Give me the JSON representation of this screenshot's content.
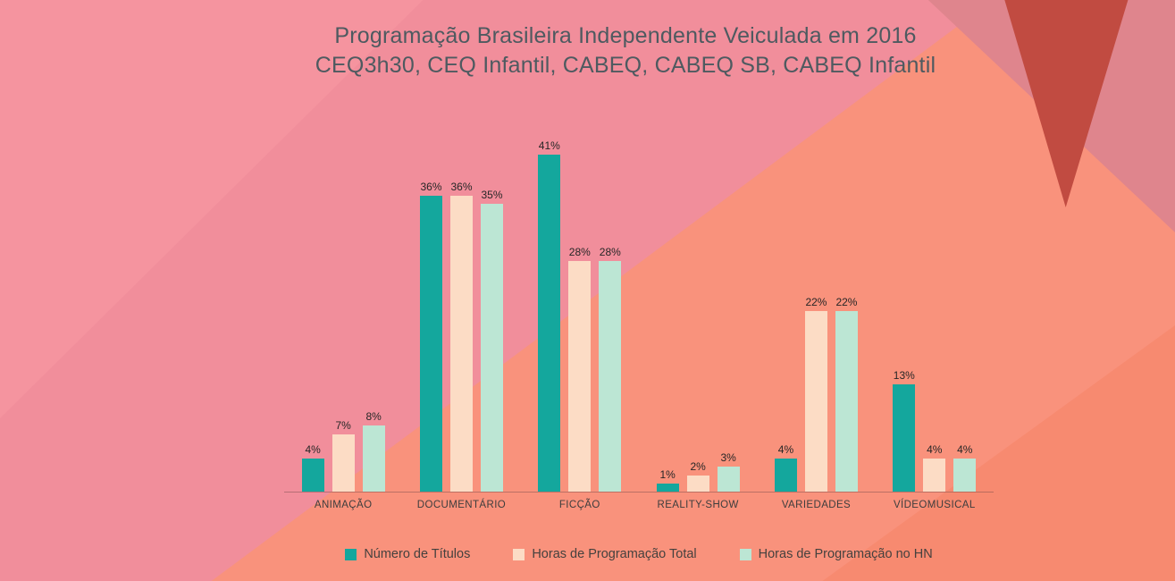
{
  "title": {
    "line1": "Programação Brasileira Independente Veiculada em 2016",
    "line2": "CEQ3h30, CEQ Infantil, CABEQ, CABEQ SB, CABEQ Infantil"
  },
  "chart_data": {
    "type": "bar",
    "title": "Programação Brasileira Independente Veiculada em 2016 — CEQ3h30, CEQ Infantil, CABEQ, CABEQ SB, CABEQ Infantil",
    "categories": [
      "ANIMAÇÃO",
      "DOCUMENTÁRIO",
      "FICÇÃO",
      "REALITY-SHOW",
      "VARIEDADES",
      "VÍDEOMUSICAL"
    ],
    "series": [
      {
        "name": "Número de Títulos",
        "color": "#14a79d",
        "values": [
          4,
          36,
          41,
          1,
          4,
          13
        ]
      },
      {
        "name": "Horas de Programação Total",
        "color": "#fcdcc5",
        "values": [
          7,
          36,
          28,
          2,
          22,
          4
        ]
      },
      {
        "name": "Horas de Programação no HN",
        "color": "#bce6d4",
        "values": [
          8,
          35,
          28,
          3,
          22,
          4
        ]
      }
    ],
    "value_suffix": "%",
    "ylim": [
      0,
      45
    ],
    "grid": false,
    "value_labels": true,
    "legend_position": "bottom"
  },
  "colors": {
    "background_pink": "#f18e9b",
    "background_salmon": "#f9927c",
    "background_mauve": "#df858d",
    "background_dark_red": "#c14b41",
    "title_text": "#4e5a60",
    "label_text": "#262626"
  }
}
